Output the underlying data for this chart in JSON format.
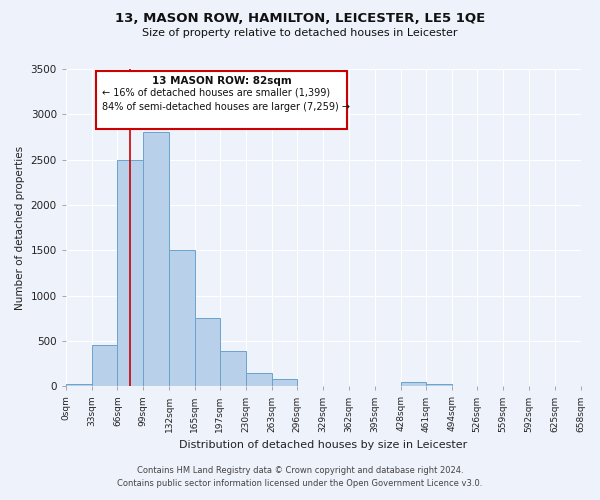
{
  "title": "13, MASON ROW, HAMILTON, LEICESTER, LE5 1QE",
  "subtitle": "Size of property relative to detached houses in Leicester",
  "xlabel": "Distribution of detached houses by size in Leicester",
  "ylabel": "Number of detached properties",
  "bar_color": "#b8d0ea",
  "bar_edge_color": "#6aa3cc",
  "background_color": "#eef2fb",
  "grid_color": "#ffffff",
  "annotation_box_color": "#cc0000",
  "vline_color": "#cc0000",
  "vline_x": 82,
  "annotation_title": "13 MASON ROW: 82sqm",
  "annotation_line1": "← 16% of detached houses are smaller (1,399)",
  "annotation_line2": "84% of semi-detached houses are larger (7,259) →",
  "bins": [
    0,
    33,
    66,
    99,
    132,
    165,
    197,
    230,
    263,
    296,
    329,
    362,
    395,
    428,
    461,
    494,
    526,
    559,
    592,
    625,
    658
  ],
  "counts": [
    25,
    460,
    2500,
    2800,
    1500,
    750,
    390,
    145,
    75,
    0,
    0,
    0,
    0,
    50,
    30,
    0,
    0,
    0,
    0,
    0
  ],
  "ylim": [
    0,
    3500
  ],
  "yticks": [
    0,
    500,
    1000,
    1500,
    2000,
    2500,
    3000,
    3500
  ],
  "footer_line1": "Contains HM Land Registry data © Crown copyright and database right 2024.",
  "footer_line2": "Contains public sector information licensed under the Open Government Licence v3.0."
}
